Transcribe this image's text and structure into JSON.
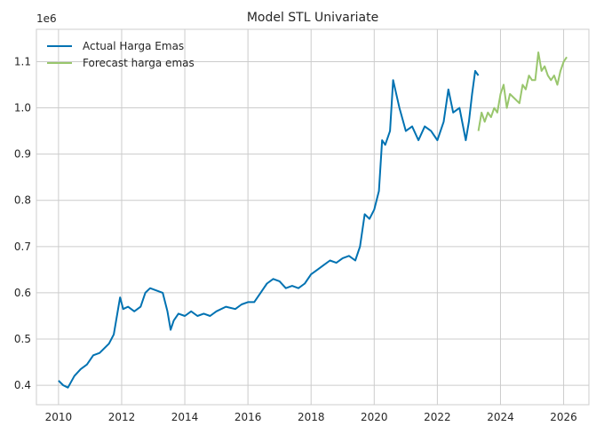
{
  "chart_data": {
    "type": "line",
    "title": "Model STL Univariate",
    "xlabel": "",
    "ylabel": "",
    "y_offset_label": "1e6",
    "xlim": [
      2009.3,
      2026.8
    ],
    "ylim": [
      0.358,
      1.17
    ],
    "grid": true,
    "legend_position": "top-left",
    "x_ticks": [
      2010,
      2012,
      2014,
      2016,
      2018,
      2020,
      2022,
      2024,
      2026
    ],
    "x_tick_labels": [
      "2010",
      "2012",
      "2014",
      "2016",
      "2018",
      "2020",
      "2022",
      "2024",
      "2026"
    ],
    "y_ticks": [
      0.4,
      0.5,
      0.6,
      0.7,
      0.8,
      0.9,
      1.0,
      1.1
    ],
    "y_tick_labels": [
      "0.4",
      "0.5",
      "0.6",
      "0.7",
      "0.8",
      "0.9",
      "1.0",
      "1.1"
    ],
    "series": [
      {
        "name": "Actual Harga Emas",
        "color": "#0072b2",
        "x": [
          2010.0,
          2010.15,
          2010.3,
          2010.5,
          2010.7,
          2010.9,
          2011.1,
          2011.3,
          2011.45,
          2011.6,
          2011.75,
          2011.9,
          2011.95,
          2012.05,
          2012.2,
          2012.4,
          2012.6,
          2012.75,
          2012.9,
          2013.1,
          2013.3,
          2013.45,
          2013.55,
          2013.65,
          2013.8,
          2014.0,
          2014.2,
          2014.4,
          2014.6,
          2014.8,
          2015.0,
          2015.3,
          2015.6,
          2015.8,
          2016.0,
          2016.2,
          2016.4,
          2016.6,
          2016.8,
          2017.0,
          2017.2,
          2017.4,
          2017.6,
          2017.8,
          2018.0,
          2018.2,
          2018.4,
          2018.6,
          2018.8,
          2019.0,
          2019.2,
          2019.4,
          2019.55,
          2019.7,
          2019.85,
          2020.0,
          2020.15,
          2020.25,
          2020.35,
          2020.5,
          2020.6,
          2020.8,
          2021.0,
          2021.2,
          2021.4,
          2021.6,
          2021.8,
          2022.0,
          2022.2,
          2022.35,
          2022.5,
          2022.7,
          2022.9,
          2023.0,
          2023.1,
          2023.2,
          2023.3
        ],
        "y": [
          0.41,
          0.4,
          0.395,
          0.42,
          0.435,
          0.445,
          0.465,
          0.47,
          0.48,
          0.49,
          0.51,
          0.57,
          0.59,
          0.565,
          0.57,
          0.56,
          0.57,
          0.6,
          0.61,
          0.605,
          0.6,
          0.56,
          0.52,
          0.54,
          0.555,
          0.55,
          0.56,
          0.55,
          0.555,
          0.55,
          0.56,
          0.57,
          0.565,
          0.575,
          0.58,
          0.58,
          0.6,
          0.62,
          0.63,
          0.625,
          0.61,
          0.615,
          0.61,
          0.62,
          0.64,
          0.65,
          0.66,
          0.67,
          0.665,
          0.675,
          0.68,
          0.67,
          0.7,
          0.77,
          0.76,
          0.78,
          0.82,
          0.93,
          0.92,
          0.95,
          1.06,
          1.0,
          0.95,
          0.96,
          0.93,
          0.96,
          0.95,
          0.93,
          0.97,
          1.04,
          0.99,
          1.0,
          0.93,
          0.97,
          1.03,
          1.08,
          1.07
        ]
      },
      {
        "name": "Forecast harga emas",
        "color": "#99c66d",
        "x": [
          2023.3,
          2023.4,
          2023.5,
          2023.6,
          2023.7,
          2023.8,
          2023.9,
          2024.0,
          2024.1,
          2024.2,
          2024.3,
          2024.45,
          2024.6,
          2024.7,
          2024.8,
          2024.9,
          2025.0,
          2025.1,
          2025.2,
          2025.3,
          2025.4,
          2025.5,
          2025.6,
          2025.7,
          2025.8,
          2025.9,
          2026.0,
          2026.1
        ],
        "y": [
          0.95,
          0.99,
          0.97,
          0.99,
          0.98,
          1.0,
          0.99,
          1.03,
          1.05,
          1.0,
          1.03,
          1.02,
          1.01,
          1.05,
          1.04,
          1.07,
          1.06,
          1.06,
          1.12,
          1.08,
          1.09,
          1.07,
          1.06,
          1.07,
          1.05,
          1.08,
          1.1,
          1.11
        ]
      }
    ]
  }
}
